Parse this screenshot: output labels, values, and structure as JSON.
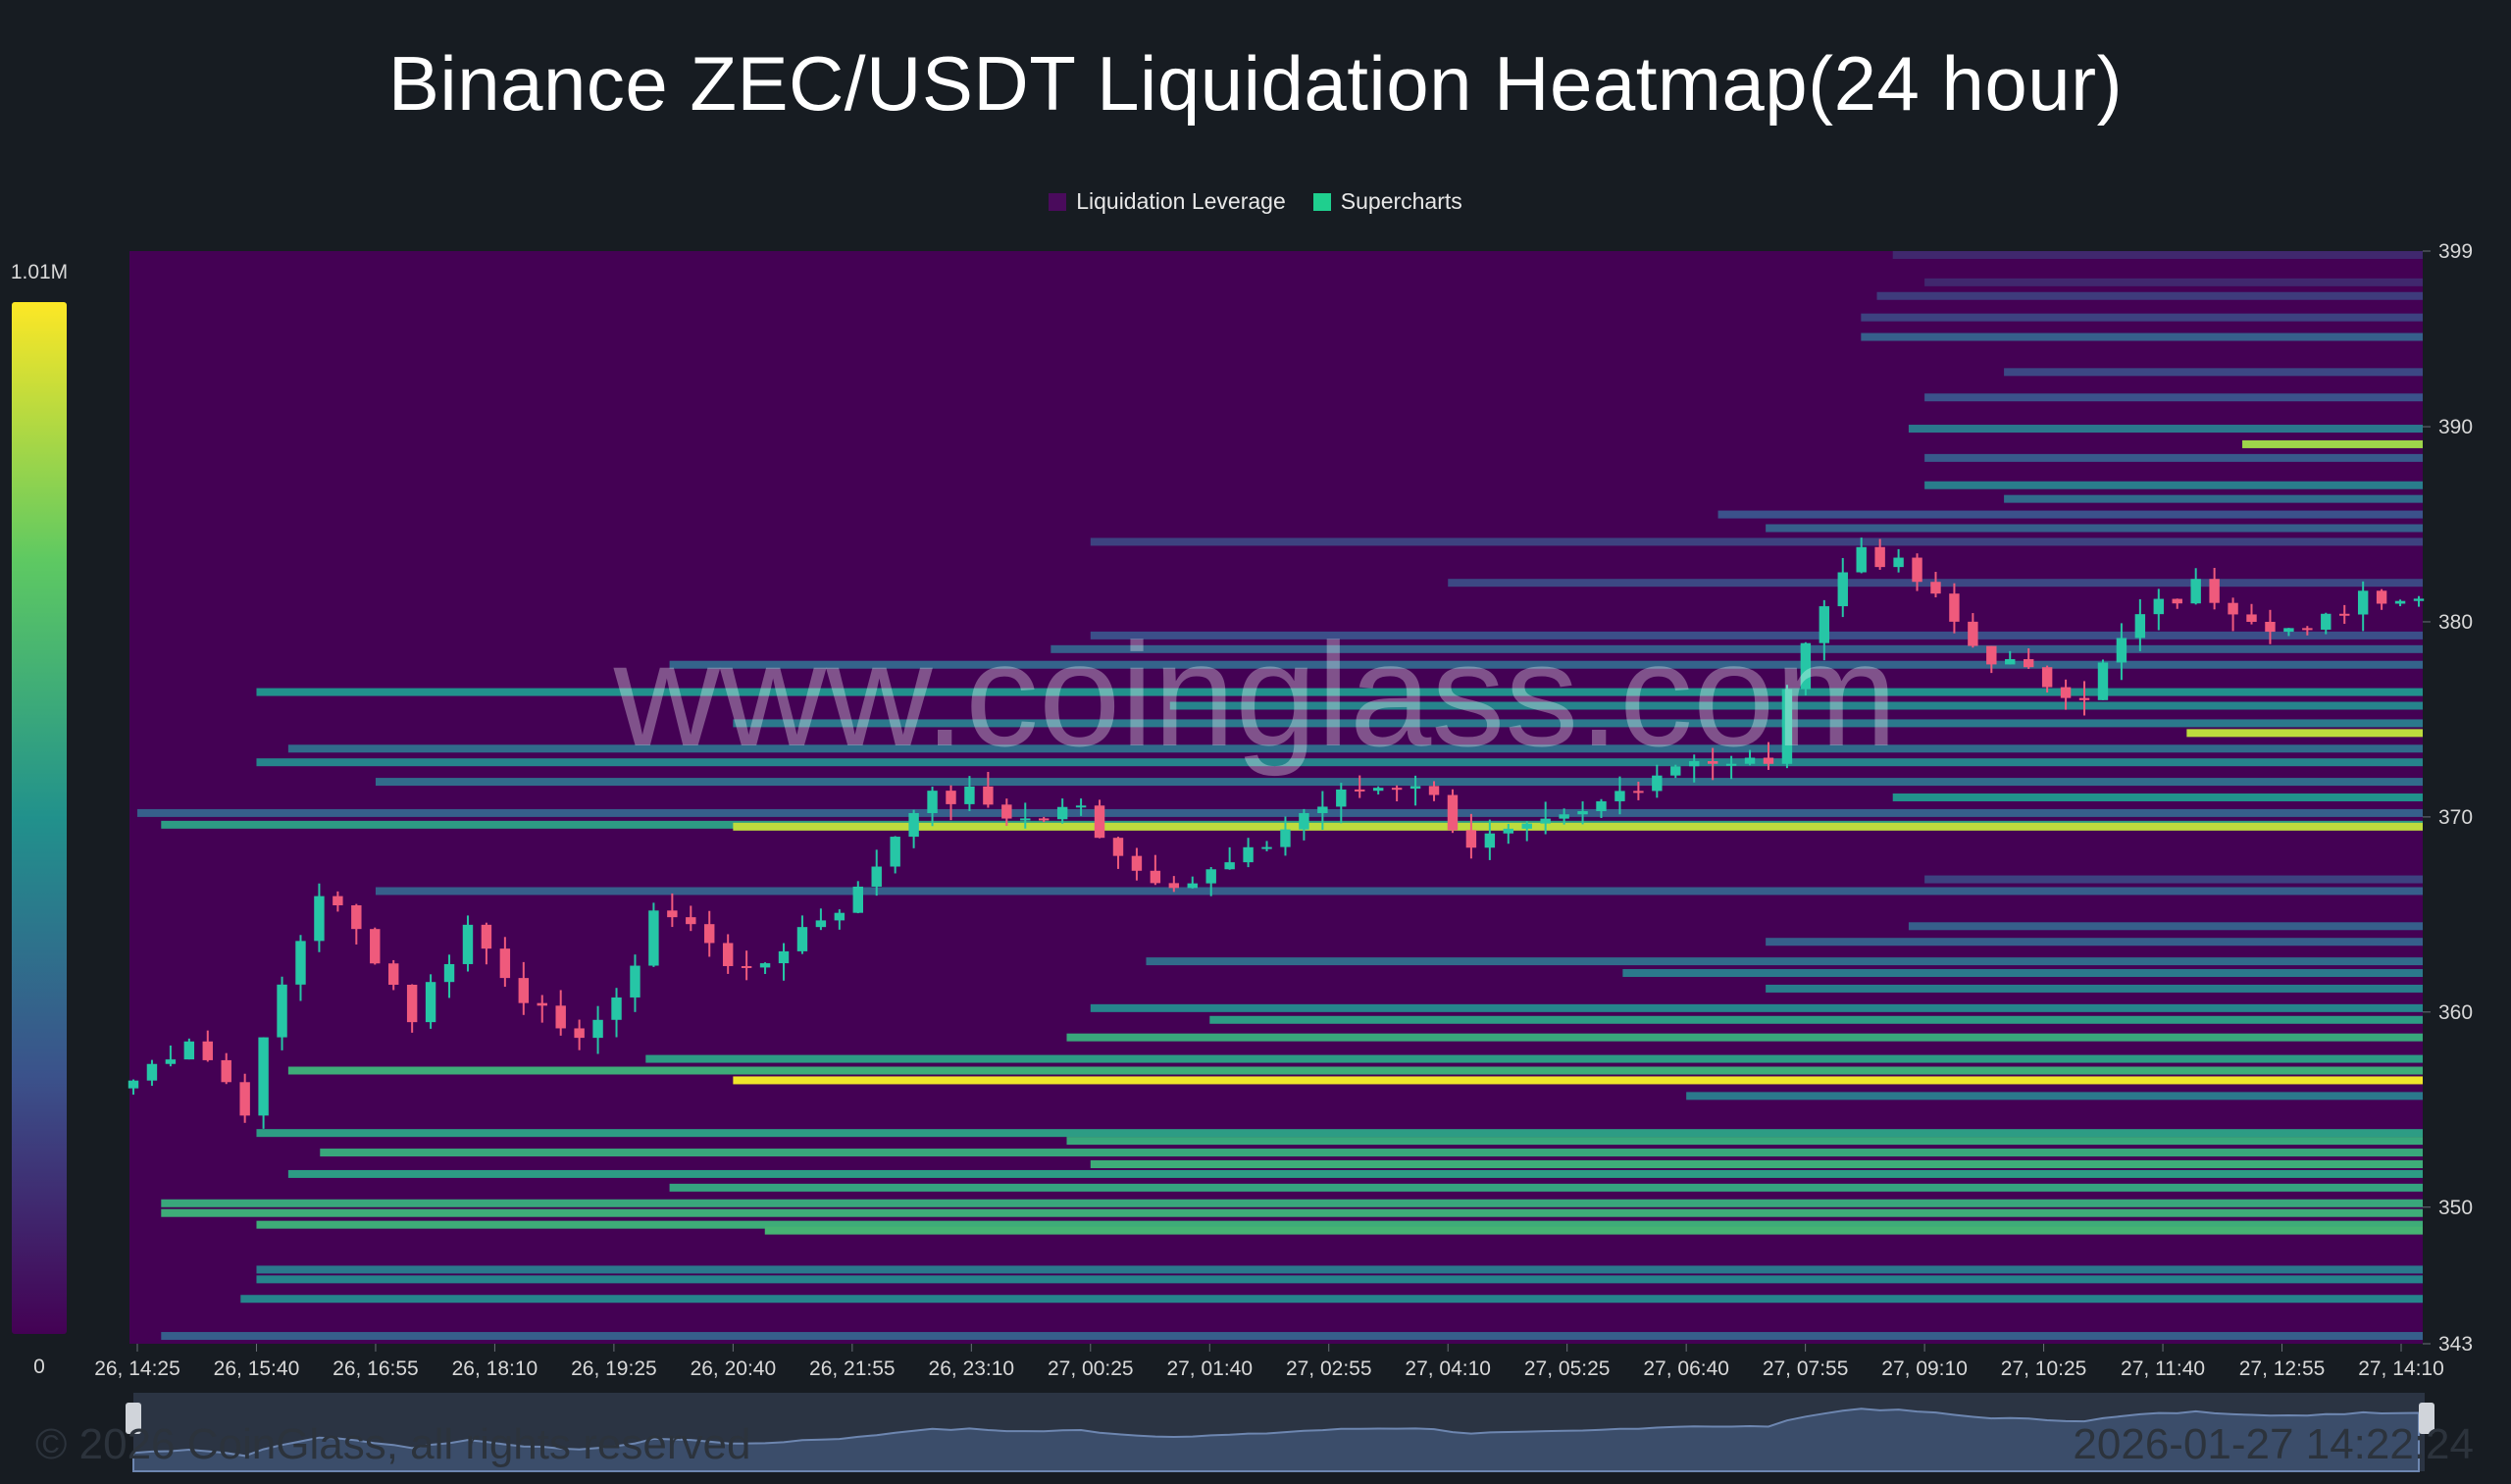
{
  "title": "Binance ZEC/USDT Liquidation Heatmap(24 hour)",
  "legend": [
    {
      "label": "Liquidation Leverage",
      "color": "#4a0b5c"
    },
    {
      "label": "Supercharts",
      "color": "#1fcf8e"
    }
  ],
  "watermark": "www.coinglass.com",
  "footer": {
    "copyright": "© 2026 CoinGlass, all rights reserved",
    "timestamp": "2026-01-27 14:22:24"
  },
  "colors": {
    "background": "#171c22",
    "heat_low": "#440154",
    "heat_mid": "#21918c",
    "heat_high": "#fde725",
    "candle_up": "#26c6a6",
    "candle_down": "#ef5a7c"
  },
  "chart_data": {
    "type": "heatmap",
    "title": "Binance ZEC/USDT Liquidation Heatmap(24 hour)",
    "x_ticks": [
      "26, 14:25",
      "26, 15:40",
      "26, 16:55",
      "26, 18:10",
      "26, 19:25",
      "26, 20:40",
      "26, 21:55",
      "26, 23:10",
      "27, 00:25",
      "27, 01:40",
      "27, 02:55",
      "27, 04:10",
      "27, 05:25",
      "27, 06:40",
      "27, 07:55",
      "27, 09:10",
      "27, 10:25",
      "27, 11:40",
      "27, 12:55",
      "27, 14:10"
    ],
    "y_ticks": [
      343,
      350,
      360,
      370,
      380,
      390,
      399
    ],
    "ylim": [
      343,
      399
    ],
    "colorbar": {
      "max_label": "1.01M",
      "min_label": "0",
      "max": 1010000,
      "min": 0
    },
    "price_series": {
      "name": "Supercharts",
      "anchors": [
        [
          0,
          356.5
        ],
        [
          3,
          358.8
        ],
        [
          6,
          355.2
        ],
        [
          8,
          361.3
        ],
        [
          10,
          366.2
        ],
        [
          13,
          363.0
        ],
        [
          15,
          359.8
        ],
        [
          18,
          364.4
        ],
        [
          21,
          361.0
        ],
        [
          23,
          358.6
        ],
        [
          26,
          360.2
        ],
        [
          28,
          365.3
        ],
        [
          31,
          363.8
        ],
        [
          33,
          361.7
        ],
        [
          36,
          364.3
        ],
        [
          39,
          366.1
        ],
        [
          42,
          370.7
        ],
        [
          45,
          371.1
        ],
        [
          48,
          369.8
        ],
        [
          51,
          370.4
        ],
        [
          54,
          367.3
        ],
        [
          57,
          366.7
        ],
        [
          60,
          367.9
        ],
        [
          63,
          370.2
        ],
        [
          66,
          371.4
        ],
        [
          69,
          371.9
        ],
        [
          72,
          368.7
        ],
        [
          75,
          369.1
        ],
        [
          78,
          370.0
        ],
        [
          81,
          371.9
        ],
        [
          84,
          373.2
        ],
        [
          86,
          372.5
        ],
        [
          88,
          373.0
        ],
        [
          89,
          376.0
        ],
        [
          90,
          379.5
        ],
        [
          93,
          383.9
        ],
        [
          96,
          382.1
        ],
        [
          99,
          378.8
        ],
        [
          102,
          377.2
        ],
        [
          105,
          376.4
        ],
        [
          108,
          380.2
        ],
        [
          111,
          381.8
        ],
        [
          114,
          380.5
        ],
        [
          117,
          379.2
        ],
        [
          120,
          381.6
        ],
        [
          123,
          381.2
        ]
      ],
      "count": 124
    },
    "liquidation_bands": [
      {
        "price": 398.8,
        "start": "27, 08:50",
        "intensity": 0.12
      },
      {
        "price": 397.4,
        "start": "27, 09:10",
        "intensity": 0.12
      },
      {
        "price": 396.7,
        "start": "27, 08:40",
        "intensity": 0.18
      },
      {
        "price": 395.6,
        "start": "27, 08:30",
        "intensity": 0.2
      },
      {
        "price": 394.6,
        "start": "27, 08:30",
        "intensity": 0.3
      },
      {
        "price": 392.8,
        "start": "27, 10:00",
        "intensity": 0.22
      },
      {
        "price": 391.5,
        "start": "27, 09:10",
        "intensity": 0.25
      },
      {
        "price": 389.9,
        "start": "27, 09:00",
        "intensity": 0.4
      },
      {
        "price": 389.1,
        "start": "27, 12:30",
        "intensity": 0.85
      },
      {
        "price": 388.4,
        "start": "27, 09:10",
        "intensity": 0.28
      },
      {
        "price": 387.0,
        "start": "27, 09:10",
        "intensity": 0.42
      },
      {
        "price": 386.3,
        "start": "27, 10:00",
        "intensity": 0.35
      },
      {
        "price": 385.5,
        "start": "27, 07:00",
        "intensity": 0.25
      },
      {
        "price": 384.8,
        "start": "27, 07:30",
        "intensity": 0.3
      },
      {
        "price": 384.1,
        "start": "27, 00:25",
        "intensity": 0.2
      },
      {
        "price": 382.0,
        "start": "27, 04:10",
        "intensity": 0.22
      },
      {
        "price": 379.3,
        "start": "27, 00:25",
        "intensity": 0.24
      },
      {
        "price": 378.6,
        "start": "27, 00:00",
        "intensity": 0.3
      },
      {
        "price": 377.8,
        "start": "26, 20:00",
        "intensity": 0.32
      },
      {
        "price": 376.4,
        "start": "26, 15:40",
        "intensity": 0.5
      },
      {
        "price": 375.7,
        "start": "27, 01:15",
        "intensity": 0.45
      },
      {
        "price": 374.8,
        "start": "26, 20:40",
        "intensity": 0.4
      },
      {
        "price": 374.3,
        "start": "27, 11:55",
        "intensity": 0.9
      },
      {
        "price": 373.5,
        "start": "26, 16:00",
        "intensity": 0.35
      },
      {
        "price": 372.8,
        "start": "26, 15:40",
        "intensity": 0.45
      },
      {
        "price": 371.8,
        "start": "26, 16:55",
        "intensity": 0.35
      },
      {
        "price": 371.0,
        "start": "27, 08:50",
        "intensity": 0.5
      },
      {
        "price": 370.2,
        "start": "26, 14:25",
        "intensity": 0.3
      },
      {
        "price": 369.6,
        "start": "26, 14:40",
        "intensity": 0.55
      },
      {
        "price": 369.5,
        "start": "26, 20:40",
        "intensity": 0.9
      },
      {
        "price": 366.8,
        "start": "27, 09:10",
        "intensity": 0.2
      },
      {
        "price": 366.2,
        "start": "26, 16:55",
        "intensity": 0.3
      },
      {
        "price": 364.4,
        "start": "27, 09:00",
        "intensity": 0.3
      },
      {
        "price": 363.6,
        "start": "27, 07:30",
        "intensity": 0.3
      },
      {
        "price": 362.6,
        "start": "27, 01:00",
        "intensity": 0.35
      },
      {
        "price": 362.0,
        "start": "27, 06:00",
        "intensity": 0.4
      },
      {
        "price": 361.2,
        "start": "27, 07:30",
        "intensity": 0.42
      },
      {
        "price": 360.2,
        "start": "27, 00:25",
        "intensity": 0.45
      },
      {
        "price": 359.6,
        "start": "27, 01:40",
        "intensity": 0.55
      },
      {
        "price": 358.7,
        "start": "27, 00:10",
        "intensity": 0.6
      },
      {
        "price": 357.6,
        "start": "26, 19:45",
        "intensity": 0.55
      },
      {
        "price": 357.0,
        "start": "26, 16:00",
        "intensity": 0.62
      },
      {
        "price": 356.5,
        "start": "26, 20:40",
        "intensity": 0.98
      },
      {
        "price": 355.7,
        "start": "27, 06:40",
        "intensity": 0.4
      },
      {
        "price": 353.8,
        "start": "26, 15:40",
        "intensity": 0.55
      },
      {
        "price": 353.4,
        "start": "27, 00:10",
        "intensity": 0.6
      },
      {
        "price": 352.8,
        "start": "26, 16:20",
        "intensity": 0.6
      },
      {
        "price": 352.2,
        "start": "27, 00:25",
        "intensity": 0.62
      },
      {
        "price": 351.7,
        "start": "26, 16:00",
        "intensity": 0.55
      },
      {
        "price": 351.0,
        "start": "26, 20:00",
        "intensity": 0.58
      },
      {
        "price": 350.2,
        "start": "26, 14:40",
        "intensity": 0.6
      },
      {
        "price": 349.7,
        "start": "26, 14:40",
        "intensity": 0.62
      },
      {
        "price": 349.1,
        "start": "26, 15:40",
        "intensity": 0.62
      },
      {
        "price": 348.8,
        "start": "26, 21:00",
        "intensity": 0.65
      },
      {
        "price": 346.8,
        "start": "26, 15:40",
        "intensity": 0.4
      },
      {
        "price": 346.3,
        "start": "26, 15:40",
        "intensity": 0.45
      },
      {
        "price": 345.3,
        "start": "26, 15:30",
        "intensity": 0.45
      },
      {
        "price": 343.4,
        "start": "26, 14:40",
        "intensity": 0.3
      }
    ]
  }
}
